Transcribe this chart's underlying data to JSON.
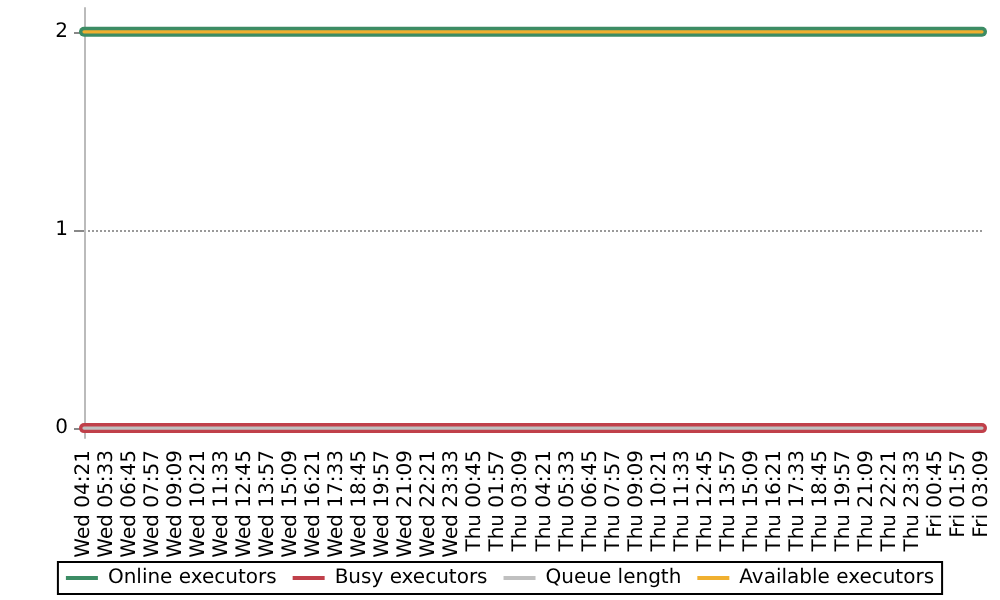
{
  "chart_data": {
    "type": "line",
    "categories": [
      "Wed 04:21",
      "Wed 05:33",
      "Wed 06:45",
      "Wed 07:57",
      "Wed 09:09",
      "Wed 10:21",
      "Wed 11:33",
      "Wed 12:45",
      "Wed 13:57",
      "Wed 15:09",
      "Wed 16:21",
      "Wed 17:33",
      "Wed 18:45",
      "Wed 19:57",
      "Wed 21:09",
      "Wed 22:21",
      "Wed 23:33",
      "Thu 00:45",
      "Thu 01:57",
      "Thu 03:09",
      "Thu 04:21",
      "Thu 05:33",
      "Thu 06:45",
      "Thu 07:57",
      "Thu 09:09",
      "Thu 10:21",
      "Thu 11:33",
      "Thu 12:45",
      "Thu 13:57",
      "Thu 15:09",
      "Thu 16:21",
      "Thu 17:33",
      "Thu 18:45",
      "Thu 19:57",
      "Thu 21:09",
      "Thu 22:21",
      "Thu 23:33",
      "Fri 00:45",
      "Fri 01:57",
      "Fri 03:09"
    ],
    "series": [
      {
        "name": "Online executors",
        "color": "#3c8c64",
        "values": [
          2,
          2,
          2,
          2,
          2,
          2,
          2,
          2,
          2,
          2,
          2,
          2,
          2,
          2,
          2,
          2,
          2,
          2,
          2,
          2,
          2,
          2,
          2,
          2,
          2,
          2,
          2,
          2,
          2,
          2,
          2,
          2,
          2,
          2,
          2,
          2,
          2,
          2,
          2,
          2
        ]
      },
      {
        "name": "Busy executors",
        "color": "#c0404a",
        "values": [
          0,
          0,
          0,
          0,
          0,
          0,
          0,
          0,
          0,
          0,
          0,
          0,
          0,
          0,
          0,
          0,
          0,
          0,
          0,
          0,
          0,
          0,
          0,
          0,
          0,
          0,
          0,
          0,
          0,
          0,
          0,
          0,
          0,
          0,
          0,
          0,
          0,
          0,
          0,
          0
        ]
      },
      {
        "name": "Queue length",
        "color": "#c0c0c0",
        "values": [
          0,
          0,
          0,
          0,
          0,
          0,
          0,
          0,
          0,
          0,
          0,
          0,
          0,
          0,
          0,
          0,
          0,
          0,
          0,
          0,
          0,
          0,
          0,
          0,
          0,
          0,
          0,
          0,
          0,
          0,
          0,
          0,
          0,
          0,
          0,
          0,
          0,
          0,
          0,
          0
        ]
      },
      {
        "name": "Available executors",
        "color": "#f0b030",
        "values": [
          2,
          2,
          2,
          2,
          2,
          2,
          2,
          2,
          2,
          2,
          2,
          2,
          2,
          2,
          2,
          2,
          2,
          2,
          2,
          2,
          2,
          2,
          2,
          2,
          2,
          2,
          2,
          2,
          2,
          2,
          2,
          2,
          2,
          2,
          2,
          2,
          2,
          2,
          2,
          2
        ]
      }
    ],
    "ylim": [
      -0.05,
      2.12
    ],
    "yticks": [
      0,
      1,
      2
    ],
    "grid": "y",
    "legend": "bottom",
    "marker": "none",
    "line_style": "solid"
  }
}
